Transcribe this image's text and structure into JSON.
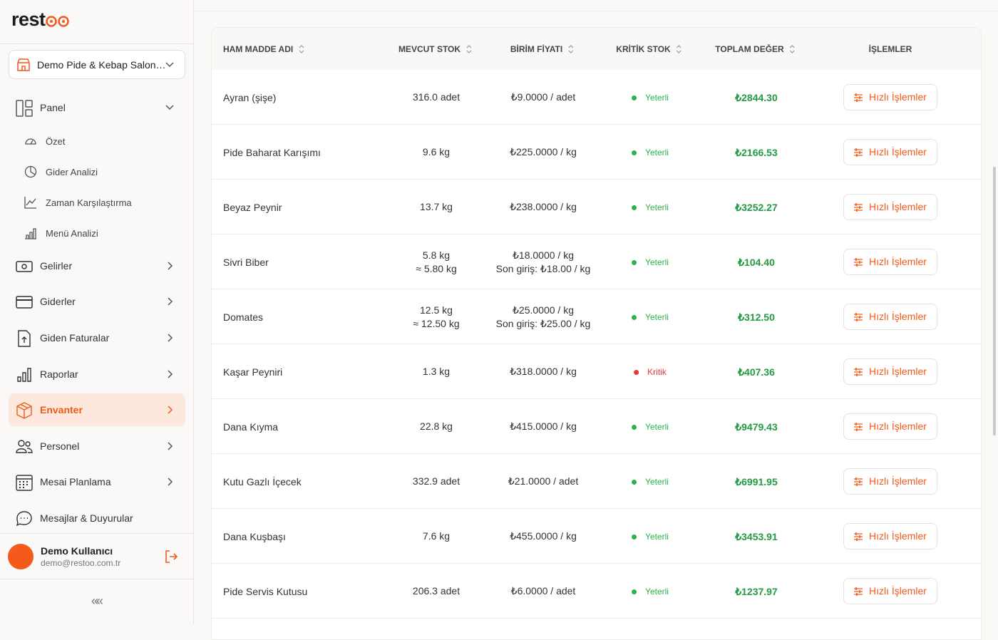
{
  "sidebar": {
    "logo": "rest",
    "restaurant": "Demo Pide & Kebap Salon…",
    "nav": {
      "panel": "Panel",
      "ozet": "Özet",
      "gider_analizi": "Gider Analizi",
      "zaman": "Zaman Karşılaştırma",
      "menu": "Menü Analizi",
      "gelirler": "Gelirler",
      "giderler": "Giderler",
      "faturalar": "Giden Faturalar",
      "raporlar": "Raporlar",
      "envanter": "Envanter",
      "personel": "Personel",
      "mesai": "Mesai Planlama",
      "mesajlar": "Mesajlar & Duyurular"
    },
    "user": {
      "name": "Demo Kullanıcı",
      "email": "demo@restoo.com.tr"
    },
    "collapse": "«"
  },
  "table": {
    "headers": [
      "HAM MADDE ADI",
      "MEVCUT STOK",
      "BİRİM FİYATI",
      "KRİTİK STOK",
      "TOPLAM DEĞER",
      "İŞLEMLER"
    ],
    "rows": [
      {
        "name": "Ayran (şişe)",
        "stock": [
          "316.0 adet"
        ],
        "price": [
          "₺9.0000 / adet"
        ],
        "status": "Yeterli",
        "status_color": "#2bb24c",
        "total": "₺2844.30",
        "action": "Hızlı İşlemler"
      },
      {
        "name": "Pide Baharat Karışımı",
        "stock": [
          "9.6 kg"
        ],
        "price": [
          "₺225.0000 / kg"
        ],
        "status": "Yeterli",
        "status_color": "#2bb24c",
        "total": "₺2166.53",
        "action": "Hızlı İşlemler"
      },
      {
        "name": "Beyaz Peynir",
        "stock": [
          "13.7 kg"
        ],
        "price": [
          "₺238.0000 / kg"
        ],
        "status": "Yeterli",
        "status_color": "#2bb24c",
        "total": "₺3252.27",
        "action": "Hızlı İşlemler"
      },
      {
        "name": "Sivri Biber",
        "stock": [
          "5.8 kg",
          "≈ 5.80 kg"
        ],
        "price": [
          "₺18.0000 / kg",
          "Son giriş: ₺18.00 / kg"
        ],
        "status": "Yeterli",
        "status_color": "#2bb24c",
        "total": "₺104.40",
        "action": "Hızlı İşlemler"
      },
      {
        "name": "Domates",
        "stock": [
          "12.5 kg",
          "≈ 12.50 kg"
        ],
        "price": [
          "₺25.0000 / kg",
          "Son giriş: ₺25.00 / kg"
        ],
        "status": "Yeterli",
        "status_color": "#2bb24c",
        "total": "₺312.50",
        "action": "Hızlı İşlemler"
      },
      {
        "name": "Kaşar Peyniri",
        "stock": [
          "1.3 kg"
        ],
        "price": [
          "₺318.0000 / kg"
        ],
        "status": "Kritik",
        "status_color": "#e53935",
        "total": "₺407.36",
        "action": "Hızlı İşlemler"
      },
      {
        "name": "Dana Kıyma",
        "stock": [
          "22.8 kg"
        ],
        "price": [
          "₺415.0000 / kg"
        ],
        "status": "Yeterli",
        "status_color": "#2bb24c",
        "total": "₺9479.43",
        "action": "Hızlı İşlemler"
      },
      {
        "name": "Kutu Gazlı İçecek",
        "stock": [
          "332.9 adet"
        ],
        "price": [
          "₺21.0000 / adet"
        ],
        "status": "Yeterli",
        "status_color": "#2bb24c",
        "total": "₺6991.95",
        "action": "Hızlı İşlemler"
      },
      {
        "name": "Dana Kuşbaşı",
        "stock": [
          "7.6 kg"
        ],
        "price": [
          "₺455.0000 / kg"
        ],
        "status": "Yeterli",
        "status_color": "#2bb24c",
        "total": "₺3453.91",
        "action": "Hızlı İşlemler"
      },
      {
        "name": "Pide Servis Kutusu",
        "stock": [
          "206.3 adet"
        ],
        "price": [
          "₺6.0000 / adet"
        ],
        "status": "Yeterli",
        "status_color": "#2bb24c",
        "total": "₺1237.97",
        "action": "Hızlı İşlemler"
      }
    ]
  }
}
